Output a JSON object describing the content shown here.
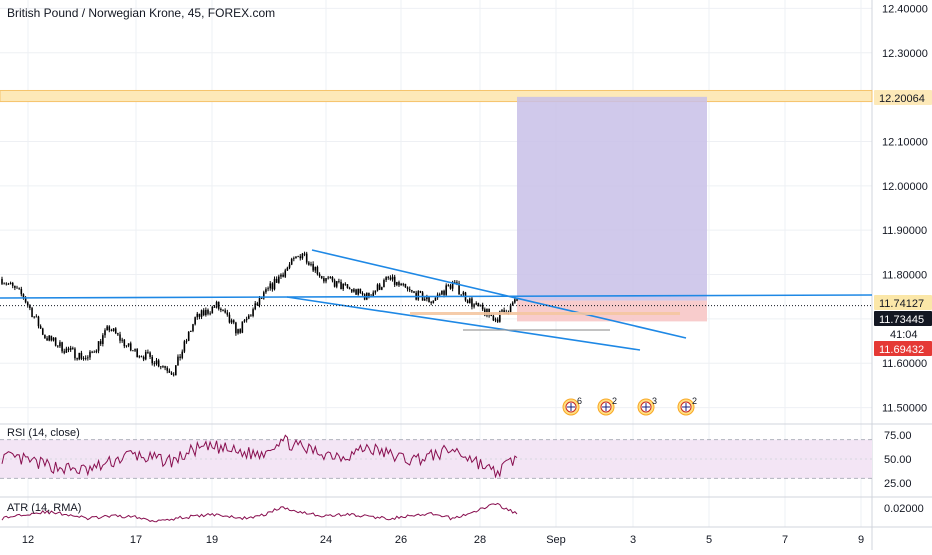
{
  "title": "British Pound / Norwegian Krone, 45, FOREX.com",
  "colors": {
    "candle": "#000000",
    "trendline": "#1e88e5",
    "resistance_band": "#fde9b8",
    "resistance_border": "#f5c36b",
    "target_zone": "#c8bfe7",
    "stop_zone": "#f7c6c6",
    "rsi_line": "#880e4f",
    "rsi_band": "#f3e5f5",
    "atr_line": "#880e4f",
    "grid": "#eef0f4",
    "tag_resistance": "#fde9b8",
    "tag_entry": "#f7c6c6",
    "tag_current": "#131722",
    "tag_stop": "#e53935"
  },
  "chart_data": {
    "type": "candlestick",
    "title": "British Pound / Norwegian Krone, 45, FOREX.com",
    "price_axis": {
      "ticks": [
        "12.40000",
        "12.30000",
        "12.20000",
        "12.10000",
        "12.00000",
        "11.90000",
        "11.80000",
        "11.70000",
        "11.60000",
        "11.50000"
      ],
      "tick_values": [
        12.4,
        12.3,
        12.2,
        12.1,
        12.0,
        11.9,
        11.8,
        11.7,
        11.6,
        11.5
      ],
      "ylim": [
        11.49,
        12.41
      ]
    },
    "time_axis": {
      "labels": [
        "12",
        "17",
        "19",
        "24",
        "26",
        "28",
        "Sep",
        "3",
        "5",
        "7",
        "9"
      ]
    },
    "price_path": [
      {
        "t": "11",
        "close": 11.79
      },
      {
        "t": "12",
        "close": 11.75
      },
      {
        "t": "12b",
        "close": 11.66
      },
      {
        "t": "13",
        "close": 11.63
      },
      {
        "t": "14",
        "close": 11.61
      },
      {
        "t": "17",
        "close": 11.68
      },
      {
        "t": "17b",
        "close": 11.63
      },
      {
        "t": "18",
        "close": 11.61
      },
      {
        "t": "18b",
        "close": 11.58
      },
      {
        "t": "19",
        "close": 11.7
      },
      {
        "t": "19b",
        "close": 11.73
      },
      {
        "t": "20",
        "close": 11.67
      },
      {
        "t": "21",
        "close": 11.74
      },
      {
        "t": "21b",
        "close": 11.8
      },
      {
        "t": "23",
        "close": 11.85
      },
      {
        "t": "23b",
        "close": 11.79
      },
      {
        "t": "24",
        "close": 11.77
      },
      {
        "t": "25",
        "close": 11.75
      },
      {
        "t": "26",
        "close": 11.79
      },
      {
        "t": "26b",
        "close": 11.76
      },
      {
        "t": "27",
        "close": 11.74
      },
      {
        "t": "27b",
        "close": 11.78
      },
      {
        "t": "28",
        "close": 11.73
      },
      {
        "t": "28b",
        "close": 11.7
      },
      {
        "t": "29",
        "close": 11.74
      }
    ],
    "price_tags": [
      {
        "label": "12.20064",
        "value": 12.20064,
        "role": "resistance"
      },
      {
        "label": "11.74127",
        "value": 11.74127,
        "role": "entry"
      },
      {
        "label": "11.73445",
        "value": 11.73445,
        "role": "current"
      },
      {
        "label": "41:04",
        "role": "countdown"
      },
      {
        "label": "11.69432",
        "value": 11.69432,
        "role": "stop"
      }
    ],
    "long_position": {
      "entry": 11.74127,
      "target": 12.20064,
      "stop": 11.69432
    },
    "resistance_zone": [
      12.19,
      12.215
    ],
    "trendlines": [
      {
        "name": "horizontal",
        "from": {
          "i": 0,
          "v": 11.765
        },
        "to": {
          "i": 60,
          "v": 11.763
        }
      },
      {
        "name": "wedge-top",
        "from": {
          "i": 13.6,
          "v": 11.86
        },
        "to": {
          "i": 35,
          "v": 11.675
        }
      },
      {
        "name": "wedge-bottom",
        "from": {
          "i": 12.5,
          "v": 11.76
        },
        "to": {
          "i": 32.4,
          "v": 11.63
        }
      }
    ],
    "event_markers": [
      {
        "count": "6"
      },
      {
        "count": "2"
      },
      {
        "count": "3"
      },
      {
        "count": "2"
      }
    ],
    "rsi": {
      "label": "RSI (14, close)",
      "ticks": [
        "75.00",
        "50.00",
        "25.00"
      ],
      "tick_values": [
        75,
        50,
        25
      ],
      "upper": 70,
      "lower": 30,
      "values": [
        52,
        49,
        44,
        40,
        38,
        46,
        55,
        50,
        48,
        60,
        62,
        57,
        55,
        70,
        61,
        56,
        53,
        62,
        55,
        49,
        53,
        60,
        49,
        35,
        52
      ]
    },
    "atr": {
      "label": "ATR (14, RMA)",
      "ticks": [
        "0.02000"
      ],
      "tick_values": [
        0.02
      ],
      "values": [
        0.019,
        0.021,
        0.022,
        0.021,
        0.019,
        0.02,
        0.02,
        0.018,
        0.019,
        0.02,
        0.021,
        0.019,
        0.02,
        0.024,
        0.022,
        0.02,
        0.021,
        0.02,
        0.019,
        0.02,
        0.021,
        0.019,
        0.022,
        0.026,
        0.021
      ]
    }
  }
}
